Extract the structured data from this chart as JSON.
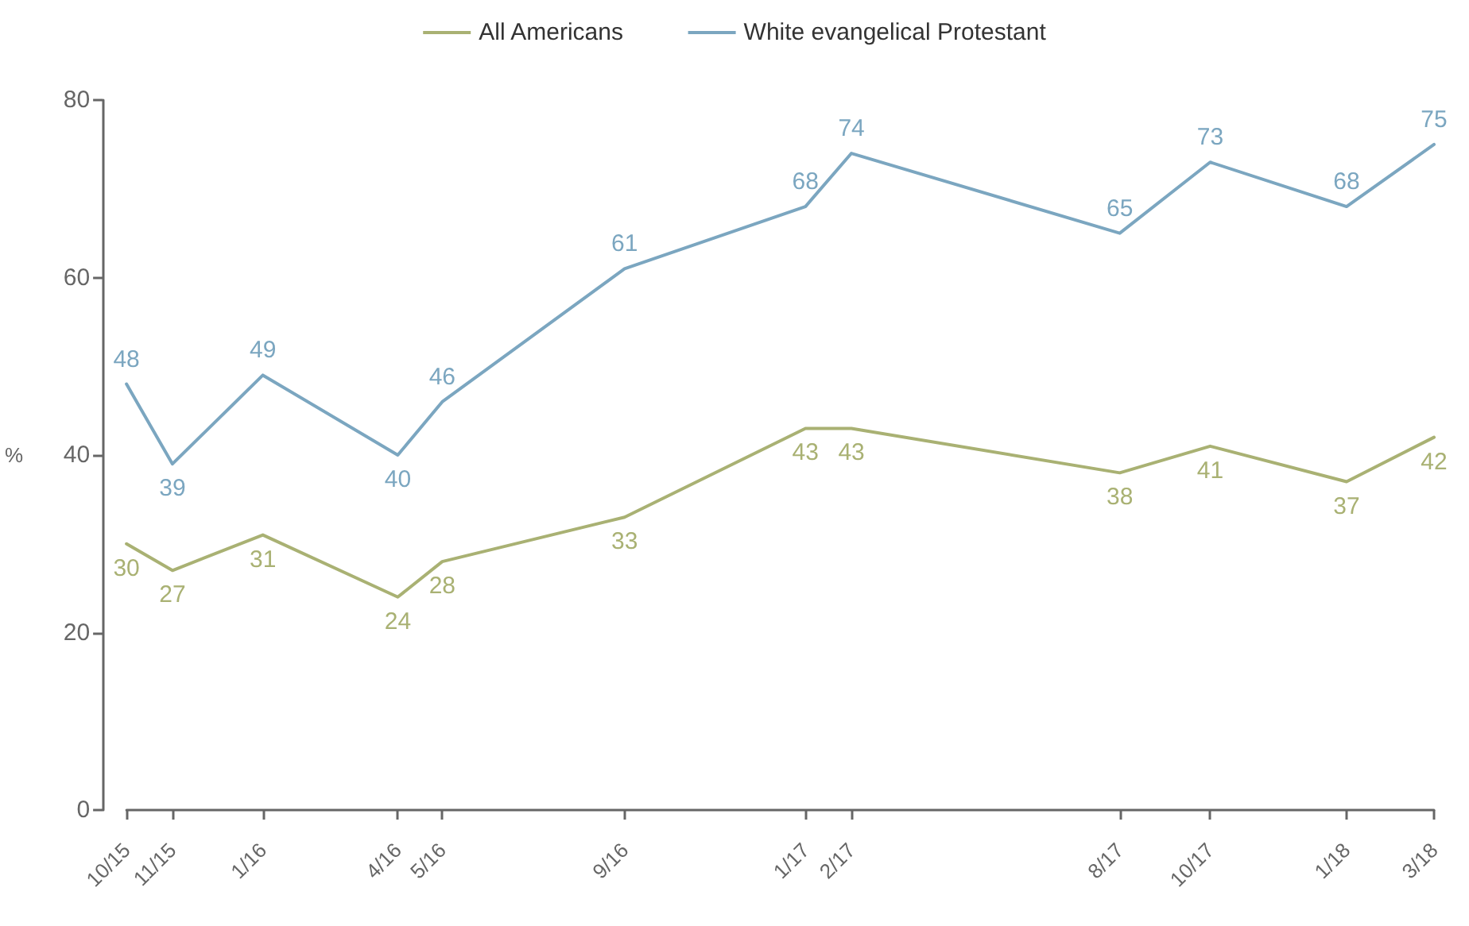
{
  "chart_data": {
    "type": "line",
    "ylabel": "%",
    "x": [
      "2015-10",
      "2015-11",
      "2016-01",
      "2016-04",
      "2016-05",
      "2016-09",
      "2017-01",
      "2017-02",
      "2017-08",
      "2017-10",
      "2018-01",
      "2018-03"
    ],
    "series": [
      {
        "name": "All Americans",
        "color": "#a9b173",
        "values": [
          30,
          27,
          31,
          24,
          28,
          33,
          43,
          43,
          38,
          41,
          37,
          42
        ]
      },
      {
        "name": "White evangelical Protestant",
        "color": "#7ba6c0",
        "values": [
          48,
          39,
          49,
          40,
          46,
          61,
          68,
          74,
          65,
          73,
          68,
          75
        ]
      }
    ],
    "xlim": [
      "2015-10",
      "2018-03"
    ],
    "xticks": [
      {
        "value": "2015-10",
        "label": "10/15"
      },
      {
        "value": "2015-11",
        "label": "11/15"
      },
      {
        "value": "2016-01",
        "label": "1/16"
      },
      {
        "value": "2016-04",
        "label": "4/16"
      },
      {
        "value": "2016-05",
        "label": "5/16"
      },
      {
        "value": "2016-09",
        "label": "9/16"
      },
      {
        "value": "2017-01",
        "label": "1/17"
      },
      {
        "value": "2017-02",
        "label": "2/17"
      },
      {
        "value": "2017-08",
        "label": "8/17"
      },
      {
        "value": "2017-10",
        "label": "10/17"
      },
      {
        "value": "2018-01",
        "label": "1/18"
      },
      {
        "value": "2018-03",
        "label": "3/18"
      }
    ],
    "ylim": [
      0,
      80
    ],
    "yticks": [
      0,
      20,
      40,
      60,
      80
    ],
    "grid": false,
    "legend": "top",
    "marker": "none",
    "line_style": "solid",
    "data_labels": true
  }
}
